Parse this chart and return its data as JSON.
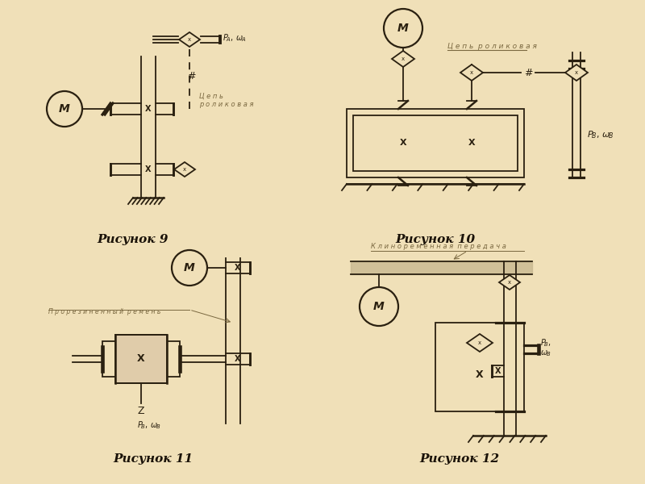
{
  "bg_color": "#f0e0b8",
  "line_color": "#2a2010",
  "label_color": "#7a6840",
  "title_color": "#1a1208",
  "captions": [
    "Рисунок 9",
    "Рисунок 10",
    "Рисунок 11",
    "Рисунок 12"
  ],
  "label9_chain": "Ц е п ь\nр о л и к о в а я",
  "label10_chain": "Ц е п ь  р о л и к о в а я",
  "label11_belt": "П р о р е з и н е н н ы й  р е м е н ь",
  "label12_belt": "К л и н о р е м е н н а я  п е р е д а ч а"
}
